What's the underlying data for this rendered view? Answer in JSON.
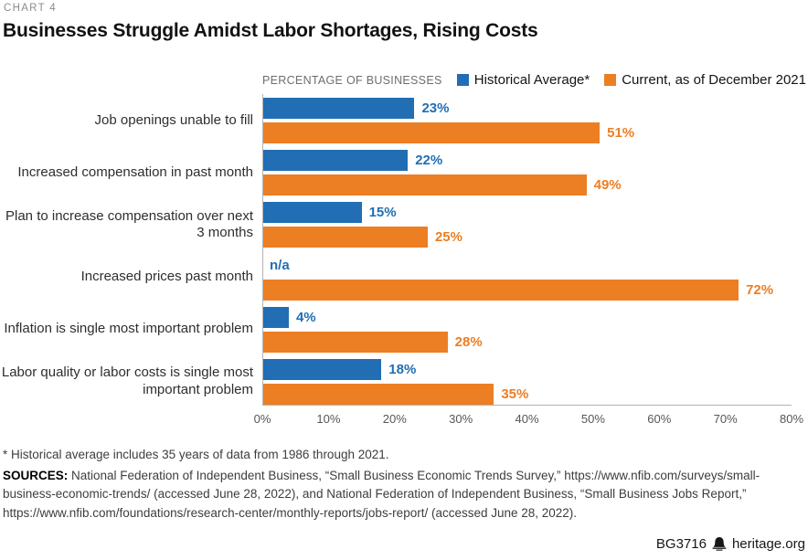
{
  "kicker": "CHART 4",
  "title": "Businesses Struggle Amidst Labor Shortages, Rising Costs",
  "legend": {
    "axis_note": "PERCENTAGE OF BUSINESSES",
    "items": [
      {
        "label": "Historical Average*",
        "color": "#216EB4"
      },
      {
        "label": "Current, as of December 2021",
        "color": "#EC7E23"
      }
    ]
  },
  "chart_data": {
    "type": "bar",
    "orientation": "horizontal",
    "title": "Businesses Struggle Amidst Labor Shortages, Rising Costs",
    "xlabel": "PERCENTAGE OF BUSINESSES",
    "ylabel": "",
    "xlim": [
      0,
      80
    ],
    "grid": false,
    "legend_position": "top",
    "categories": [
      "Job openings unable to fill",
      "Increased compensation in past month",
      "Plan to increase compensation over next 3 months",
      "Increased prices past month",
      "Inflation is single most important problem",
      "Labor quality or labor costs is single most important problem"
    ],
    "series": [
      {
        "name": "Historical Average*",
        "color": "#216EB4",
        "values": [
          23,
          22,
          15,
          null,
          4,
          18
        ],
        "display": [
          "23%",
          "22%",
          "15%",
          "n/a",
          "4%",
          "18%"
        ]
      },
      {
        "name": "Current, as of December 2021",
        "color": "#EC7E23",
        "values": [
          51,
          49,
          25,
          72,
          28,
          35
        ],
        "display": [
          "51%",
          "49%",
          "25%",
          "72%",
          "28%",
          "35%"
        ]
      }
    ],
    "x_tick_values": [
      0,
      10,
      20,
      30,
      40,
      50,
      60,
      70,
      80
    ],
    "x_tick_labels": [
      "0%",
      "10%",
      "20%",
      "30%",
      "40%",
      "50%",
      "60%",
      "70%",
      "80%"
    ]
  },
  "footnotes": {
    "asterisk": "* Historical average includes 35 years of data from 1986 through 2021.",
    "sources_label": "SOURCES:",
    "sources_text": " National Federation of Independent Business, “Small Business Economic Trends Survey,” https://www.nfib.com/surveys/small-business-economic-trends/ (accessed June 28, 2022), and National Federation of Independent Business, “Small Business Jobs Report,” https://www.nfib.com/foundations/research-center/monthly-reports/jobs-report/ (accessed June 28, 2022)."
  },
  "footer": {
    "id": "BG3716",
    "site": "heritage.org",
    "icon": "liberty-bell-icon"
  }
}
